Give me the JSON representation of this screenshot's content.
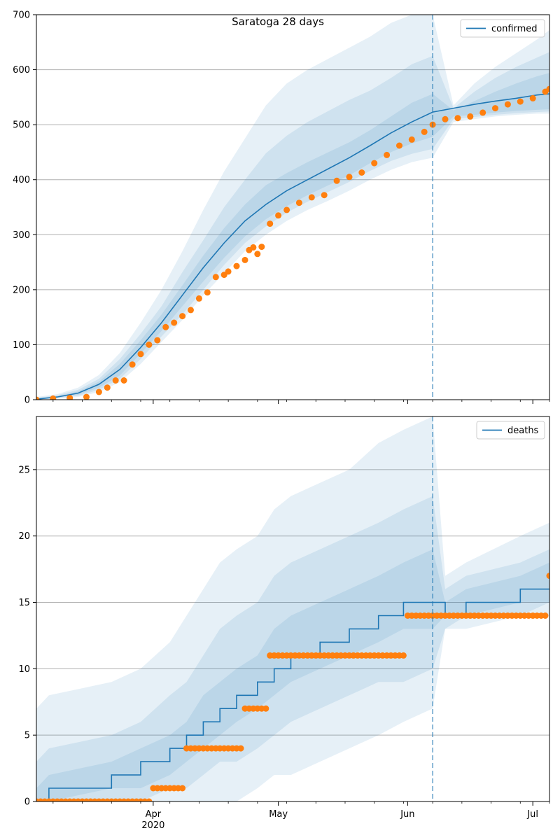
{
  "figure": {
    "title": "Saratoga 28 days"
  },
  "colors": {
    "line": "#1f77b4",
    "observed": "#ff7f0e",
    "band": "#1f77b4",
    "grid": "#b0b0b0",
    "divider": "#1f77b4"
  },
  "chart_data": [
    {
      "type": "line",
      "name": "confirmed-panel",
      "legend": "confirmed",
      "legend_position": "top-right",
      "x_type": "date",
      "xlim": [
        "2020-03-04",
        "2020-07-05"
      ],
      "ylim": [
        0,
        700
      ],
      "yticks": [
        0,
        100,
        200,
        300,
        400,
        500,
        600,
        700
      ],
      "grid": "horizontal",
      "divider_date": "2020-06-07",
      "model": {
        "dates": [
          "2020-03-04",
          "2020-03-09",
          "2020-03-14",
          "2020-03-19",
          "2020-03-24",
          "2020-03-29",
          "2020-04-03",
          "2020-04-08",
          "2020-04-13",
          "2020-04-18",
          "2020-04-23",
          "2020-04-28",
          "2020-05-03",
          "2020-05-08",
          "2020-05-13",
          "2020-05-18",
          "2020-05-23",
          "2020-05-28",
          "2020-06-02",
          "2020-06-07",
          "2020-06-12",
          "2020-06-17",
          "2020-06-22",
          "2020-06-27",
          "2020-07-02",
          "2020-07-05"
        ],
        "median": [
          1,
          5,
          12,
          28,
          55,
          95,
          140,
          190,
          240,
          285,
          325,
          355,
          380,
          400,
          420,
          440,
          462,
          485,
          505,
          523,
          530,
          537,
          543,
          548,
          554,
          556
        ],
        "bands": [
          {
            "lower": [
              0,
              2,
              5,
              14,
              32,
              65,
              105,
              145,
              190,
              230,
              270,
              300,
              325,
              345,
              362,
              380,
              400,
              418,
              432,
              440,
              505,
              510,
              515,
              518,
              520,
              520
            ],
            "upper": [
              5,
              10,
              22,
              45,
              85,
              140,
              200,
              270,
              345,
              415,
              475,
              535,
              575,
              600,
              620,
              640,
              660,
              685,
              700,
              700,
              535,
              575,
              605,
              630,
              655,
              672
            ]
          },
          {
            "lower": [
              0,
              3,
              7,
              18,
              38,
              74,
              115,
              155,
              200,
              245,
              285,
              315,
              340,
              360,
              378,
              396,
              416,
              434,
              447,
              456,
              510,
              514,
              518,
              521,
              523,
              524
            ],
            "upper": [
              3,
              8,
              18,
              38,
              74,
              120,
              170,
              232,
              290,
              350,
              400,
              448,
              480,
              505,
              525,
              545,
              562,
              585,
              610,
              625,
              530,
              560,
              585,
              605,
              622,
              632
            ]
          },
          {
            "lower": [
              0,
              4,
              9,
              22,
              44,
              84,
              125,
              170,
              215,
              258,
              297,
              328,
              352,
              372,
              390,
              408,
              430,
              450,
              466,
              478,
              515,
              518,
              522,
              525,
              527,
              528
            ],
            "upper": [
              2,
              6,
              15,
              33,
              65,
              108,
              155,
              208,
              262,
              312,
              355,
              390,
              412,
              432,
              450,
              468,
              490,
              515,
              540,
              556,
              526,
              543,
              560,
              575,
              588,
              594
            ]
          }
        ]
      },
      "observed": {
        "dates": [
          "2020-03-04",
          "2020-03-08",
          "2020-03-12",
          "2020-03-16",
          "2020-03-19",
          "2020-03-21",
          "2020-03-23",
          "2020-03-25",
          "2020-03-27",
          "2020-03-29",
          "2020-03-31",
          "2020-04-02",
          "2020-04-04",
          "2020-04-06",
          "2020-04-08",
          "2020-04-10",
          "2020-04-12",
          "2020-04-14",
          "2020-04-16",
          "2020-04-18",
          "2020-04-19",
          "2020-04-21",
          "2020-04-23",
          "2020-04-24",
          "2020-04-25",
          "2020-04-26",
          "2020-04-27",
          "2020-04-29",
          "2020-05-01",
          "2020-05-03",
          "2020-05-06",
          "2020-05-09",
          "2020-05-12",
          "2020-05-15",
          "2020-05-18",
          "2020-05-21",
          "2020-05-24",
          "2020-05-27",
          "2020-05-30",
          "2020-06-02",
          "2020-06-05",
          "2020-06-07",
          "2020-06-10",
          "2020-06-13",
          "2020-06-16",
          "2020-06-19",
          "2020-06-22",
          "2020-06-25",
          "2020-06-28",
          "2020-07-01",
          "2020-07-04",
          "2020-07-05"
        ],
        "values": [
          0,
          2,
          3,
          5,
          14,
          22,
          35,
          35,
          64,
          83,
          100,
          108,
          132,
          140,
          152,
          163,
          184,
          195,
          223,
          227,
          233,
          243,
          254,
          272,
          277,
          265,
          278,
          320,
          335,
          345,
          358,
          368,
          372,
          398,
          405,
          413,
          430,
          445,
          462,
          473,
          487,
          500,
          510,
          512,
          515,
          522,
          530,
          537,
          542,
          548,
          560,
          565
        ]
      }
    },
    {
      "type": "line",
      "name": "deaths-panel",
      "legend": "deaths",
      "legend_position": "top-right",
      "x_type": "date",
      "xlim": [
        "2020-03-04",
        "2020-07-05"
      ],
      "ylim": [
        0,
        29
      ],
      "yticks": [
        0,
        5,
        10,
        15,
        20,
        25
      ],
      "grid": "horizontal",
      "divider_date": "2020-06-07",
      "xticks": [
        {
          "date": "2020-04-01",
          "label": "Apr",
          "sub": "2020"
        },
        {
          "date": "2020-05-01",
          "label": "May",
          "sub": ""
        },
        {
          "date": "2020-06-01",
          "label": "Jun",
          "sub": ""
        },
        {
          "date": "2020-07-01",
          "label": "Jul",
          "sub": ""
        }
      ],
      "model": {
        "dates": [
          "2020-03-04",
          "2020-03-07",
          "2020-03-22",
          "2020-03-29",
          "2020-04-05",
          "2020-04-09",
          "2020-04-13",
          "2020-04-17",
          "2020-04-21",
          "2020-04-26",
          "2020-04-30",
          "2020-05-04",
          "2020-05-11",
          "2020-05-18",
          "2020-05-25",
          "2020-05-31",
          "2020-06-07",
          "2020-06-10",
          "2020-06-15",
          "2020-06-28",
          "2020-07-05"
        ],
        "median": [
          0,
          1,
          2,
          3,
          4,
          5,
          6,
          7,
          8,
          9,
          10,
          11,
          12,
          13,
          14,
          15,
          15,
          14,
          15,
          16,
          16
        ],
        "bands": [
          {
            "lower": [
              0,
              0,
              0,
              0,
              0,
              0,
              0,
              0,
              0,
              1,
              2,
              2,
              3,
              4,
              5,
              6,
              7,
              13,
              13,
              14,
              14
            ],
            "upper": [
              7,
              8,
              9,
              10,
              12,
              14,
              16,
              18,
              19,
              20,
              22,
              23,
              24,
              25,
              27,
              28,
              29,
              17,
              18,
              20,
              21
            ]
          },
          {
            "lower": [
              0,
              0,
              0,
              0,
              1,
              1,
              2,
              3,
              3,
              4,
              5,
              6,
              7,
              8,
              9,
              9,
              10,
              13,
              14,
              14,
              15
            ],
            "upper": [
              3,
              4,
              5,
              6,
              8,
              9,
              11,
              13,
              14,
              15,
              17,
              18,
              19,
              20,
              21,
              22,
              23,
              16,
              17,
              18,
              19
            ]
          },
          {
            "lower": [
              0,
              0,
              1,
              1,
              2,
              3,
              4,
              5,
              6,
              7,
              8,
              9,
              10,
              11,
              12,
              13,
              13,
              14,
              14,
              15,
              15
            ],
            "upper": [
              1,
              2,
              3,
              4,
              5,
              6,
              8,
              9,
              10,
              11,
              13,
              14,
              15,
              16,
              17,
              18,
              19,
              15,
              16,
              17,
              18
            ]
          }
        ]
      },
      "observed": {
        "segments": [
          {
            "start": "2020-03-04",
            "end": "2020-03-31",
            "value": 0
          },
          {
            "start": "2020-04-01",
            "end": "2020-04-08",
            "value": 1
          },
          {
            "start": "2020-04-09",
            "end": "2020-04-22",
            "value": 4
          },
          {
            "start": "2020-04-23",
            "end": "2020-04-28",
            "value": 7
          },
          {
            "start": "2020-04-29",
            "end": "2020-05-31",
            "value": 11
          },
          {
            "start": "2020-06-01",
            "end": "2020-07-04",
            "value": 14
          },
          {
            "start": "2020-07-05",
            "end": "2020-07-05",
            "value": 17
          }
        ]
      }
    }
  ]
}
